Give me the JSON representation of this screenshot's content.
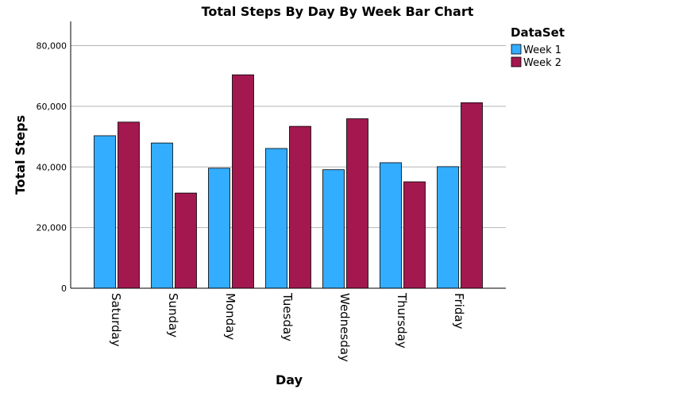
{
  "chart_data": {
    "type": "bar",
    "title": "Total Steps By Day By Week Bar Chart",
    "xlabel": "Day",
    "ylabel": "Total Steps",
    "categories": [
      "Saturday",
      "Sunday",
      "Monday",
      "Tuesday",
      "Wednesday",
      "Thursday",
      "Friday"
    ],
    "series": [
      {
        "name": "Week 1",
        "color": "#33adff",
        "values": [
          50300,
          47900,
          39600,
          46100,
          39100,
          41400,
          40100
        ]
      },
      {
        "name": "Week 2",
        "color": "#a2184f",
        "values": [
          54800,
          31400,
          70400,
          53400,
          55900,
          35100,
          61200
        ]
      }
    ],
    "ylim": [
      0,
      88000
    ],
    "yticks": [
      0,
      20000,
      40000,
      60000,
      80000
    ],
    "ytick_labels": [
      "0",
      "20,000",
      "40,000",
      "60,000",
      "80,000"
    ],
    "grid": true,
    "legend": {
      "title": "DataSet",
      "placement": "top-right"
    }
  }
}
